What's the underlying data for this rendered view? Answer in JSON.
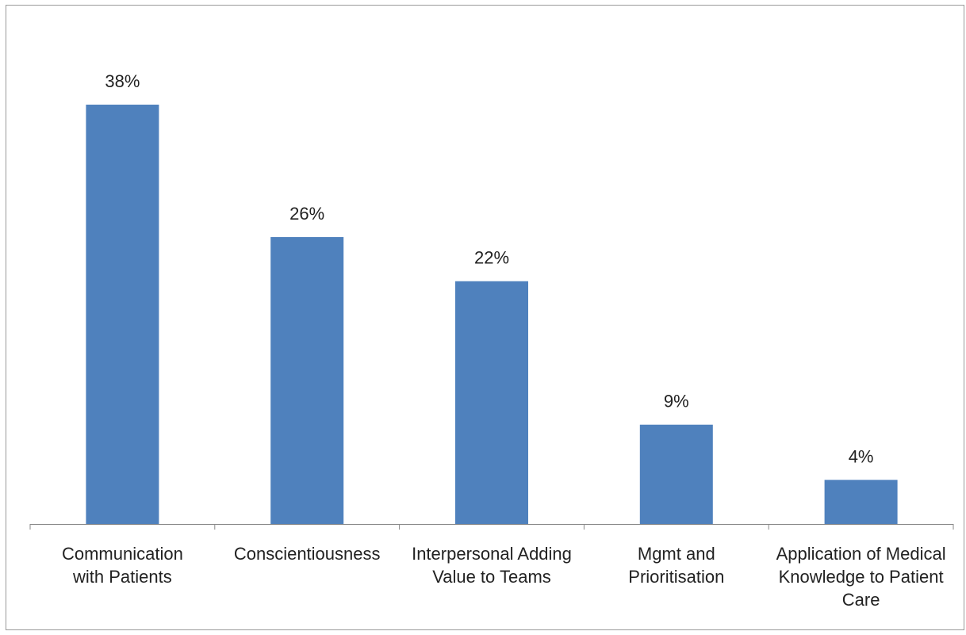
{
  "chart_data": {
    "type": "bar",
    "categories": [
      "Communication with Patients",
      "Conscientiousness",
      "Interpersonal Adding Value to Teams",
      "Mgmt and Prioritisation",
      "Application of Medical Knowledge to Patient Care"
    ],
    "values": [
      38,
      26,
      22,
      9,
      4
    ],
    "value_labels": [
      "38%",
      "26%",
      "22%",
      "9%",
      "4%"
    ],
    "color": "#4f81bd"
  }
}
